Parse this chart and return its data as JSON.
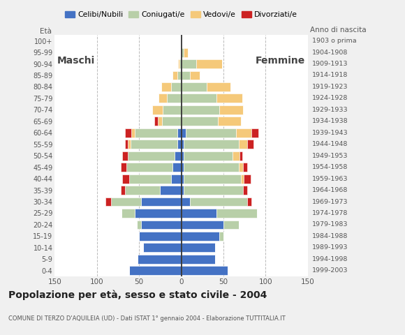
{
  "age_groups": [
    "0-4",
    "5-9",
    "10-14",
    "15-19",
    "20-24",
    "25-29",
    "30-34",
    "35-39",
    "40-44",
    "45-49",
    "50-54",
    "55-59",
    "60-64",
    "65-69",
    "70-74",
    "75-79",
    "80-84",
    "85-89",
    "90-94",
    "95-99",
    "100+"
  ],
  "birth_years": [
    "1999-2003",
    "1994-1998",
    "1989-1993",
    "1984-1988",
    "1979-1983",
    "1974-1978",
    "1969-1973",
    "1964-1968",
    "1959-1963",
    "1954-1958",
    "1949-1953",
    "1944-1948",
    "1939-1943",
    "1934-1938",
    "1929-1933",
    "1924-1928",
    "1919-1923",
    "1914-1918",
    "1909-1913",
    "1904-1908",
    "1903 o prima"
  ],
  "maschi": {
    "celibe": [
      62,
      52,
      45,
      50,
      48,
      55,
      48,
      25,
      12,
      10,
      8,
      5,
      5,
      0,
      0,
      0,
      0,
      0,
      0,
      0,
      0
    ],
    "coniugato": [
      0,
      0,
      0,
      0,
      5,
      16,
      35,
      42,
      50,
      55,
      55,
      55,
      50,
      23,
      22,
      17,
      12,
      5,
      2,
      0,
      0
    ],
    "vedovo": [
      0,
      0,
      0,
      0,
      0,
      0,
      0,
      0,
      0,
      0,
      0,
      3,
      4,
      5,
      12,
      10,
      12,
      5,
      2,
      0,
      0
    ],
    "divorziato": [
      0,
      0,
      0,
      0,
      0,
      0,
      7,
      5,
      8,
      7,
      7,
      4,
      8,
      4,
      0,
      0,
      0,
      0,
      0,
      0,
      0
    ]
  },
  "femmine": {
    "nubile": [
      55,
      40,
      40,
      45,
      50,
      42,
      10,
      3,
      3,
      3,
      3,
      3,
      5,
      0,
      0,
      0,
      0,
      0,
      0,
      0,
      0
    ],
    "coniugata": [
      0,
      0,
      0,
      5,
      18,
      48,
      68,
      70,
      68,
      65,
      58,
      65,
      60,
      43,
      45,
      42,
      30,
      10,
      18,
      3,
      0
    ],
    "vedova": [
      0,
      0,
      0,
      0,
      0,
      0,
      0,
      0,
      3,
      5,
      8,
      10,
      18,
      28,
      28,
      30,
      28,
      12,
      30,
      5,
      0
    ],
    "divorziata": [
      0,
      0,
      0,
      0,
      0,
      0,
      5,
      5,
      8,
      5,
      3,
      8,
      8,
      0,
      0,
      0,
      0,
      0,
      0,
      0,
      0
    ]
  },
  "colors": {
    "celibe": "#4472C4",
    "coniugato": "#B8CFA8",
    "vedovo": "#F5C97A",
    "divorziato": "#CC2222"
  },
  "xlim": 150,
  "xticks": [
    -150,
    -100,
    -50,
    0,
    50,
    100,
    150
  ],
  "title": "Popolazione per età, sesso e stato civile - 2004",
  "subtitle": "COMUNE DI TERZO D'AQUILEIA (UD) - Dati ISTAT 1° gennaio 2004 - Elaborazione TUTTITALIA.IT",
  "legend_labels": [
    "Celibi/Nubili",
    "Coniugati/e",
    "Vedovi/e",
    "Divorziati/e"
  ],
  "eta_label": "Età",
  "anno_label": "Anno di nascita",
  "maschi_label": "Maschi",
  "femmine_label": "Femmine",
  "bg_color": "#f0f0f0",
  "plot_bg": "#ffffff",
  "bar_height": 0.78,
  "bar_edgecolor": "white",
  "bar_linewidth": 0.4,
  "grid_color": "#bbbbbb",
  "tick_color": "#555555",
  "title_color": "#222222",
  "label_color": "#444444"
}
